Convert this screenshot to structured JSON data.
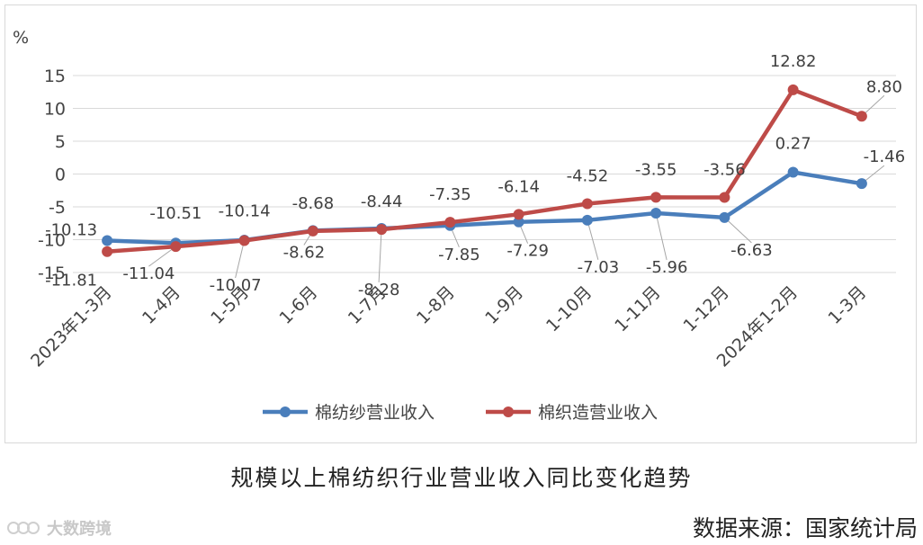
{
  "chart_data": {
    "type": "line",
    "unit_label": "%",
    "categories": [
      "2023年1-3月",
      "1-4月",
      "1-5月",
      "1-6月",
      "1-7月",
      "1-8月",
      "1-9月",
      "1-10月",
      "1-11月",
      "1-12月",
      "2024年1-2月",
      "1-3月"
    ],
    "series": [
      {
        "name": "棉纺纱营业收入",
        "color": "#4a7ebb",
        "values": [
          -10.13,
          -10.51,
          -10.07,
          -8.62,
          -8.28,
          -7.85,
          -7.29,
          -7.03,
          -5.96,
          -6.63,
          0.27,
          -1.46
        ],
        "labels": [
          "-10.13",
          "-10.51",
          "-10.07",
          "-8.62",
          "-8.28",
          "-7.85",
          "-7.29",
          "-7.03",
          "-5.96",
          "-6.63",
          "0.27",
          "-1.46"
        ]
      },
      {
        "name": "棉织造营业收入",
        "color": "#be4b48",
        "values": [
          -11.81,
          -11.04,
          -10.14,
          -8.68,
          -8.44,
          -7.35,
          -6.14,
          -4.52,
          -3.55,
          -3.56,
          12.82,
          8.8
        ],
        "labels": [
          "-11.81",
          "-11.04",
          "-10.14",
          "-8.68",
          "-8.44",
          "-7.35",
          "-6.14",
          "-4.52",
          "-3.55",
          "-3.56",
          "12.82",
          "8.80"
        ]
      }
    ],
    "yticks": [
      "15",
      "10",
      "5",
      "0",
      "-5",
      "-10",
      "-15"
    ],
    "ylim": [
      -15,
      15
    ],
    "grid": true,
    "legend_position": "bottom"
  },
  "caption": "规模以上棉纺织行业营业收入同比变化趋势",
  "source": "数据来源：国家统计局",
  "watermark": "大数跨境"
}
